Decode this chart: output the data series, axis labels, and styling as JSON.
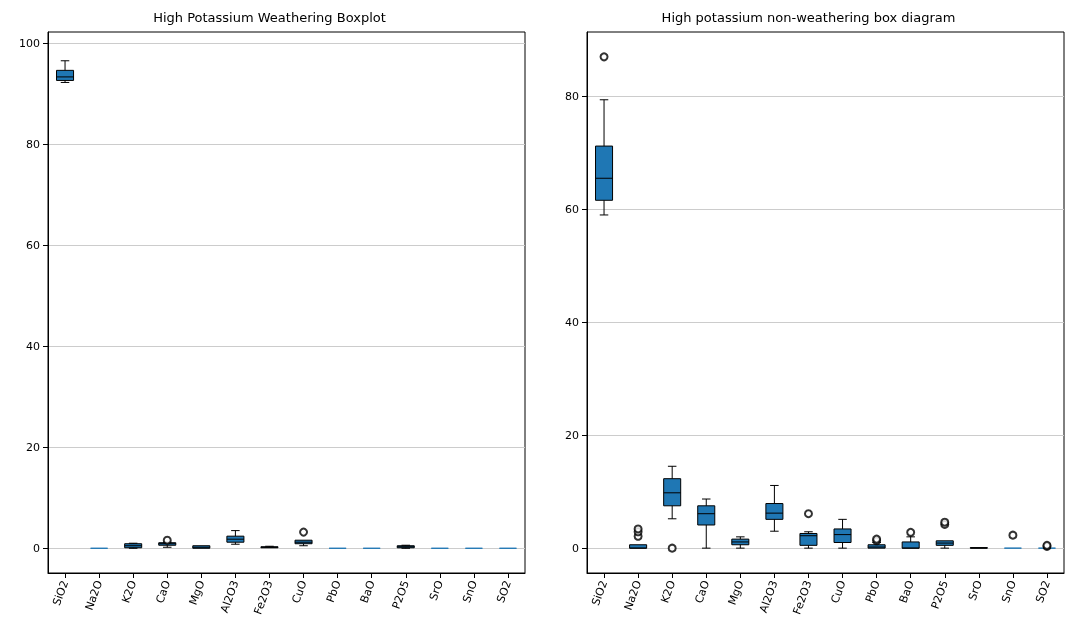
{
  "chart_data": [
    {
      "type": "box",
      "title": "High Potassium Weathering Boxplot",
      "categories": [
        "SiO2",
        "Na2O",
        "K2O",
        "CaO",
        "MgO",
        "Al2O3",
        "Fe2O3",
        "CuO",
        "PbO",
        "BaO",
        "P2O5",
        "SrO",
        "SnO",
        "SO2"
      ],
      "ylim": [
        -4.9,
        102.3
      ],
      "yticks": [
        0,
        20,
        40,
        60,
        80,
        100
      ],
      "grid": "y",
      "series": [
        {
          "color": "#1f77b4",
          "boxes": [
            {
              "low": 92.3,
              "q1": 92.7,
              "median": 93.4,
              "q3": 94.7,
              "high": 96.6
            },
            {
              "low": 0,
              "q1": 0,
              "median": 0,
              "q3": 0,
              "high": 0
            },
            {
              "low": 0,
              "q1": 0.1,
              "median": 0.5,
              "q3": 0.9,
              "high": 1.0
            },
            {
              "low": 0.2,
              "q1": 0.6,
              "median": 0.9,
              "q3": 1.1,
              "high": 1.2,
              "outliers": [
                1.6
              ]
            },
            {
              "low": 0,
              "q1": 0,
              "median": 0.2,
              "q3": 0.5,
              "high": 0.5
            },
            {
              "low": 0.8,
              "q1": 1.2,
              "median": 1.8,
              "q3": 2.4,
              "high": 3.5
            },
            {
              "low": 0.1,
              "q1": 0.1,
              "median": 0.2,
              "q3": 0.3,
              "high": 0.4
            },
            {
              "low": 0.5,
              "q1": 0.9,
              "median": 1.2,
              "q3": 1.6,
              "high": 1.6,
              "outliers": [
                3.2
              ]
            },
            {
              "low": 0,
              "q1": 0,
              "median": 0,
              "q3": 0,
              "high": 0
            },
            {
              "low": 0,
              "q1": 0,
              "median": 0,
              "q3": 0,
              "high": 0
            },
            {
              "low": 0,
              "q1": 0.1,
              "median": 0.3,
              "q3": 0.5,
              "high": 0.6
            },
            {
              "low": 0,
              "q1": 0,
              "median": 0,
              "q3": 0,
              "high": 0
            },
            {
              "low": 0,
              "q1": 0,
              "median": 0,
              "q3": 0,
              "high": 0
            },
            {
              "low": 0,
              "q1": 0,
              "median": 0,
              "q3": 0,
              "high": 0
            }
          ]
        }
      ]
    },
    {
      "type": "box",
      "title": "High potassium non-weathering box diagram",
      "categories": [
        "SiO2",
        "Na2O",
        "K2O",
        "CaO",
        "MgO",
        "Al2O3",
        "Fe2O3",
        "CuO",
        "PbO",
        "BaO",
        "P2O5",
        "SrO",
        "SnO",
        "SO2"
      ],
      "ylim": [
        -4.4,
        91.4
      ],
      "yticks": [
        0,
        20,
        40,
        60,
        80
      ],
      "grid": "y",
      "series": [
        {
          "color": "#1f77b4",
          "boxes": [
            {
              "low": 59,
              "q1": 61.6,
              "median": 65.5,
              "q3": 71.2,
              "high": 79.4,
              "outliers": [
                87
              ]
            },
            {
              "low": 0,
              "q1": 0,
              "median": 0,
              "q3": 0.6,
              "high": 0.6,
              "outliers": [
                2.1,
                2.9,
                3.4
              ]
            },
            {
              "low": 5.2,
              "q1": 7.5,
              "median": 9.8,
              "q3": 12.3,
              "high": 14.5,
              "outliers": [
                0
              ]
            },
            {
              "low": 0,
              "q1": 4.1,
              "median": 6.1,
              "q3": 7.5,
              "high": 8.7
            },
            {
              "low": 0,
              "q1": 0.6,
              "median": 1.1,
              "q3": 1.6,
              "high": 2.0
            },
            {
              "low": 3.0,
              "q1": 5.1,
              "median": 6.2,
              "q3": 7.9,
              "high": 11.1
            },
            {
              "low": 0,
              "q1": 0.5,
              "median": 2.2,
              "q3": 2.6,
              "high": 2.9,
              "outliers": [
                6.1
              ]
            },
            {
              "low": 0,
              "q1": 1.0,
              "median": 2.4,
              "q3": 3.4,
              "high": 5.1
            },
            {
              "low": 0,
              "q1": 0,
              "median": 0.2,
              "q3": 0.6,
              "high": 1.0,
              "outliers": [
                1.3,
                1.6
              ]
            },
            {
              "low": 0,
              "q1": 0,
              "median": 0,
              "q3": 1.1,
              "high": 2.0,
              "outliers": [
                2.8
              ]
            },
            {
              "low": 0,
              "q1": 0.5,
              "median": 0.9,
              "q3": 1.3,
              "high": 1.3,
              "outliers": [
                4.2,
                4.6
              ]
            },
            {
              "low": 0,
              "q1": 0,
              "median": 0,
              "q3": 0.1,
              "high": 0.1
            },
            {
              "low": 0,
              "q1": 0,
              "median": 0,
              "q3": 0,
              "high": 0,
              "outliers": [
                2.3
              ]
            },
            {
              "low": 0,
              "q1": 0,
              "median": 0,
              "q3": 0,
              "high": 0,
              "outliers": [
                0.3,
                0.5
              ]
            }
          ]
        }
      ]
    }
  ]
}
